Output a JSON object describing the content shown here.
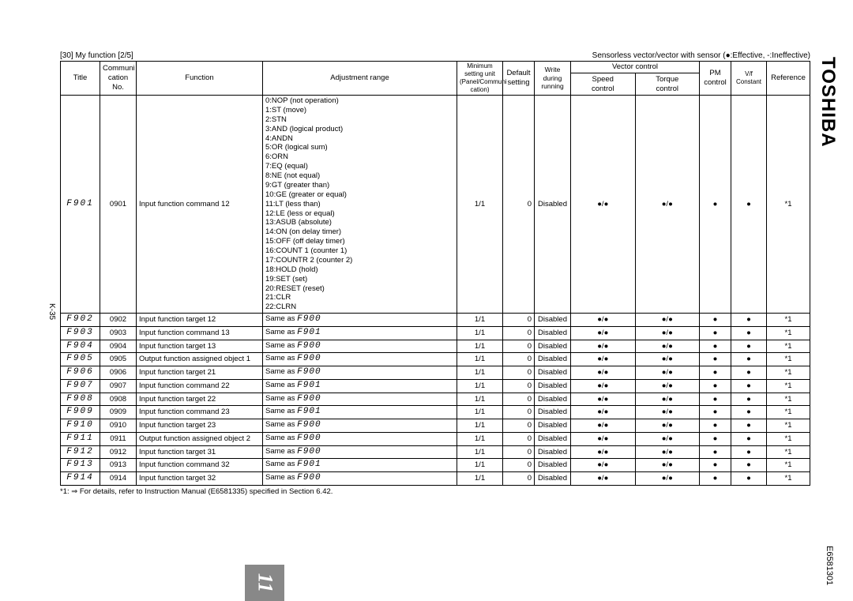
{
  "brand": "TOSHIBA",
  "doc_number": "E6581301",
  "side_page": "K-35",
  "section": "[30] My function [2/5]",
  "legend": "Sensorless vector/vector with sensor (●:Effective, -:Ineffective)",
  "vector_group": "Vector control",
  "headers": {
    "title": "Title",
    "comm": "Communi\ncation\nNo.",
    "func": "Function",
    "adj": "Adjustment range",
    "min": "Minimum\nsetting unit\n(Panel/Communi\ncation)",
    "def": "Default\nsetting",
    "write": "Write during\nrunning",
    "speed": "Speed\ncontrol",
    "torque": "Torque\ncontrol",
    "pm": "PM\ncontrol",
    "vf": "V/f Constant",
    "ref": "Reference"
  },
  "bullet": "●",
  "slash_bullet": "●/●",
  "adj_list": [
    "0:NOP (not operation)",
    "1:ST (move)",
    "2:STN",
    "3:AND (logical product)",
    "4:ANDN",
    "5:OR (logical sum)",
    "6:ORN",
    "7:EQ (equal)",
    "8:NE (not equal)",
    "9:GT (greater than)",
    "10:GE (greater or equal)",
    "11:LT (less than)",
    "12:LE (less or equal)",
    "13:ASUB (absolute)",
    "14:ON (on delay timer)",
    "15:OFF (off delay timer)",
    "16:COUNT 1 (counter 1)",
    "17:COUNTR 2 (counter 2)",
    "18:HOLD (hold)",
    "19:SET (set)",
    "20:RESET (reset)",
    "21:CLR",
    "22:CLRN"
  ],
  "rows": [
    {
      "t": "F901",
      "c": "0901",
      "f": "Input function command 12",
      "a": "__LIST__",
      "m": "1/1",
      "d": "0",
      "w": "Disabled",
      "r": "*1"
    },
    {
      "t": "F902",
      "c": "0902",
      "f": "Input function target 12",
      "a": "Same as F900",
      "m": "1/1",
      "d": "0",
      "w": "Disabled",
      "r": "*1"
    },
    {
      "t": "F903",
      "c": "0903",
      "f": "Input function command 13",
      "a": "Same as F901",
      "m": "1/1",
      "d": "0",
      "w": "Disabled",
      "r": "*1"
    },
    {
      "t": "F904",
      "c": "0904",
      "f": "Input function target 13",
      "a": "Same as F900",
      "m": "1/1",
      "d": "0",
      "w": "Disabled",
      "r": "*1"
    },
    {
      "t": "F905",
      "c": "0905",
      "f": "Output function assigned object 1",
      "a": "Same as F900",
      "m": "1/1",
      "d": "0",
      "w": "Disabled",
      "r": "*1"
    },
    {
      "t": "F906",
      "c": "0906",
      "f": "Input function target 21",
      "a": "Same as F900",
      "m": "1/1",
      "d": "0",
      "w": "Disabled",
      "r": "*1"
    },
    {
      "t": "F907",
      "c": "0907",
      "f": "Input function command 22",
      "a": "Same as F901",
      "m": "1/1",
      "d": "0",
      "w": "Disabled",
      "r": "*1"
    },
    {
      "t": "F908",
      "c": "0908",
      "f": "Input function target 22",
      "a": "Same as F900",
      "m": "1/1",
      "d": "0",
      "w": "Disabled",
      "r": "*1"
    },
    {
      "t": "F909",
      "c": "0909",
      "f": "Input function command 23",
      "a": "Same as F901",
      "m": "1/1",
      "d": "0",
      "w": "Disabled",
      "r": "*1"
    },
    {
      "t": "F910",
      "c": "0910",
      "f": "Input function target 23",
      "a": "Same as F900",
      "m": "1/1",
      "d": "0",
      "w": "Disabled",
      "r": "*1"
    },
    {
      "t": "F911",
      "c": "0911",
      "f": "Output function assigned object 2",
      "a": "Same as F900",
      "m": "1/1",
      "d": "0",
      "w": "Disabled",
      "r": "*1"
    },
    {
      "t": "F912",
      "c": "0912",
      "f": "Input function target 31",
      "a": "Same as F900",
      "m": "1/1",
      "d": "0",
      "w": "Disabled",
      "r": "*1"
    },
    {
      "t": "F913",
      "c": "0913",
      "f": "Input function command 32",
      "a": "Same as F901",
      "m": "1/1",
      "d": "0",
      "w": "Disabled",
      "r": "*1"
    },
    {
      "t": "F914",
      "c": "0914",
      "f": "Input function target 32",
      "a": "Same as F900",
      "m": "1/1",
      "d": "0",
      "w": "Disabled",
      "r": "*1"
    }
  ],
  "footnote": "*1: ⇒ For details, refer to Instruction Manual (E6581335) specified in Section 6.42.",
  "tab": "11"
}
